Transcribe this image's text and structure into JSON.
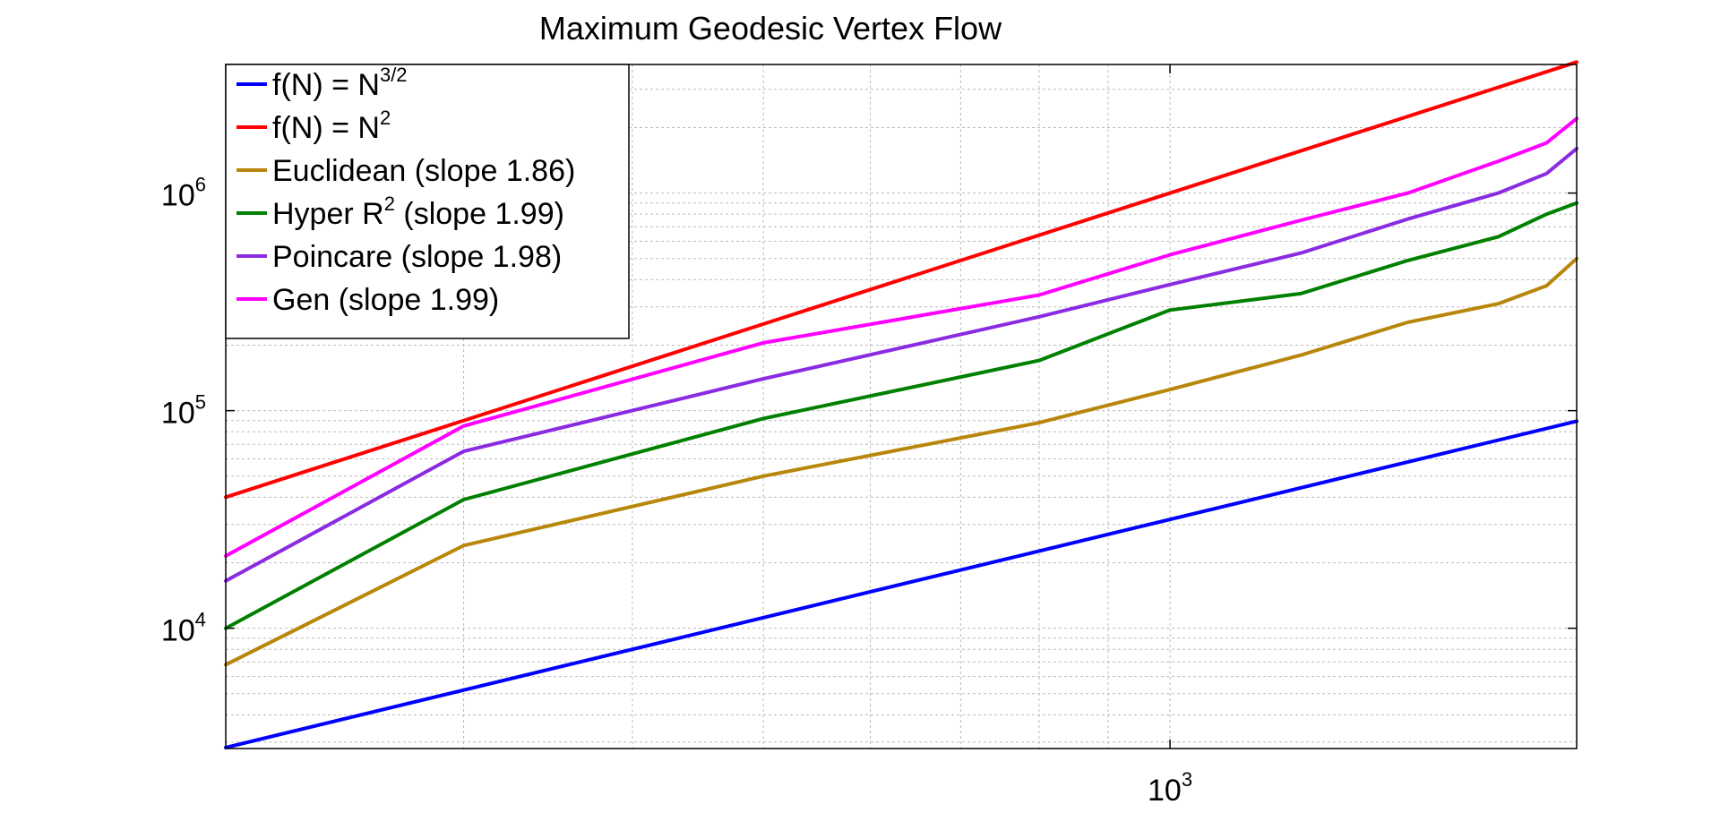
{
  "chart_data": {
    "type": "line",
    "title": "Maximum Geodesic Vertex Flow",
    "xlabel": "",
    "ylabel": "",
    "xscale": "log",
    "yscale": "log",
    "xlim": [
      200,
      2000
    ],
    "ylim": [
      2800,
      3900000
    ],
    "grid": true,
    "legend_position": "top-left",
    "x_ticks": [
      {
        "base": "10",
        "exp": "3",
        "value": 1000
      }
    ],
    "y_ticks": [
      {
        "base": "10",
        "exp": "4",
        "value": 10000
      },
      {
        "base": "10",
        "exp": "5",
        "value": 100000
      },
      {
        "base": "10",
        "exp": "6",
        "value": 1000000
      }
    ],
    "series": [
      {
        "name": "f(N) = N",
        "sup": "3/2",
        "color": "#0000ff",
        "x": [
          200,
          2000
        ],
        "y": [
          2828,
          89443
        ]
      },
      {
        "name": "f(N) = N",
        "sup": "2",
        "color": "#ff0000",
        "x": [
          200,
          2000
        ],
        "y": [
          40000,
          4000000
        ]
      },
      {
        "name": "Euclidean (slope 1.86)",
        "sup": "",
        "color": "#b8860b",
        "x": [
          200,
          300,
          500,
          800,
          1000,
          1250,
          1500,
          1750,
          1900,
          2000
        ],
        "y": [
          6800,
          24000,
          50000,
          88000,
          125000,
          180000,
          255000,
          310000,
          375000,
          500000
        ]
      },
      {
        "name": "Hyper R",
        "sup": "2",
        "name_after": " (slope 1.99)",
        "color": "#008000",
        "x": [
          200,
          300,
          500,
          800,
          1000,
          1250,
          1500,
          1750,
          1900,
          2000
        ],
        "y": [
          10000,
          39000,
          92000,
          170000,
          290000,
          345000,
          490000,
          630000,
          800000,
          900000
        ]
      },
      {
        "name": "Poincare (slope 1.98)",
        "sup": "",
        "color": "#8a2be2",
        "x": [
          200,
          300,
          500,
          800,
          1000,
          1250,
          1500,
          1750,
          1900,
          2000
        ],
        "y": [
          16500,
          65000,
          140000,
          270000,
          380000,
          530000,
          760000,
          1000000,
          1230000,
          1600000
        ]
      },
      {
        "name": "Gen (slope 1.99)",
        "sup": "",
        "color": "#ff00ff",
        "x": [
          200,
          300,
          500,
          800,
          1000,
          1250,
          1500,
          1750,
          1900,
          2000
        ],
        "y": [
          21500,
          85000,
          205000,
          340000,
          520000,
          750000,
          1000000,
          1400000,
          1700000,
          2200000
        ]
      }
    ]
  }
}
